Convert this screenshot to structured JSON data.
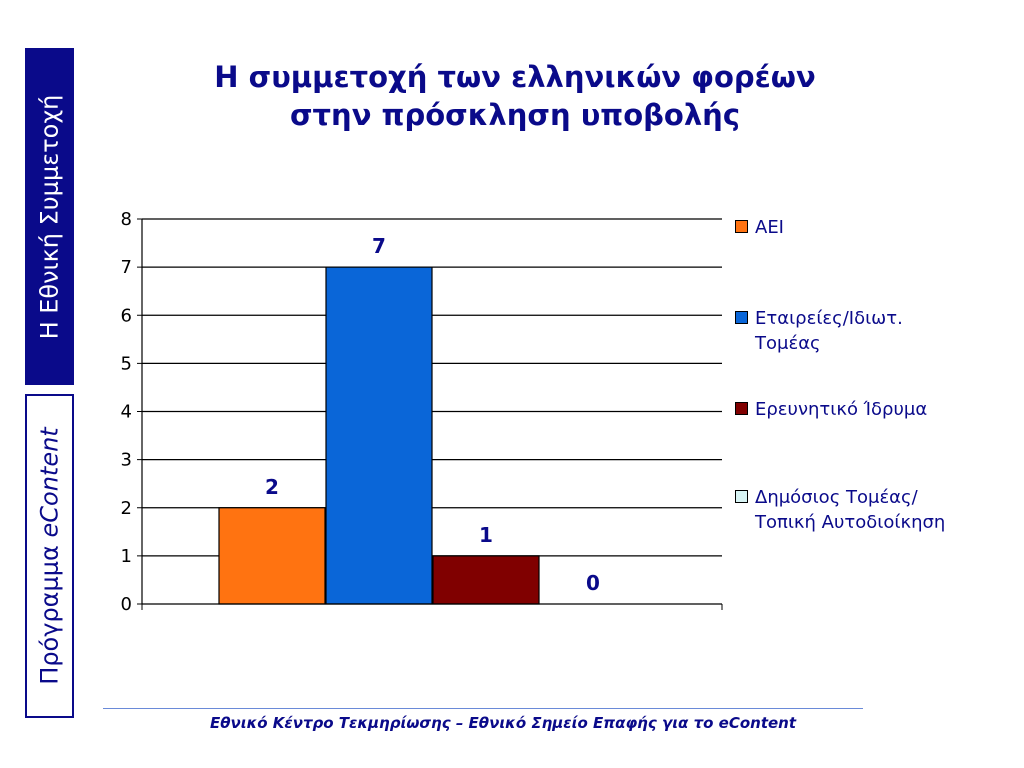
{
  "sidebar": {
    "top_label": "Η Εθνική Συμμετοχή",
    "bottom_label_prefix": "Πρόγραμμα ",
    "bottom_label_brand": "eContent"
  },
  "title": {
    "line1": "Η συμμετοχή των ελληνικών φορέων",
    "line2": "στην πρόσκληση υποβολής"
  },
  "chart_data": {
    "type": "bar",
    "categories": [
      "ΑΕΙ",
      "Εταιρείες/Ιδιωτ. Τομέας",
      "Ερευνητικό Ίδρυμα",
      "Δημόσιος Τομέας/Τοπική Αυτοδιοίκηση"
    ],
    "values": [
      2,
      7,
      1,
      0
    ],
    "data_labels": [
      "2",
      "7",
      "1",
      "0"
    ],
    "colors": [
      "#ff7311",
      "#0a66d8",
      "#800000",
      "#d8f4f4"
    ],
    "ylim": [
      0,
      8
    ],
    "yticks": [
      "0",
      "1",
      "2",
      "3",
      "4",
      "5",
      "6",
      "7",
      "8"
    ],
    "grid": true,
    "legend_position": "right",
    "label_color": "#0a0a8a"
  },
  "legend": [
    {
      "label": "ΑΕΙ",
      "color": "#ff7311"
    },
    {
      "label": "Εταιρείες/Ιδιωτ. Τομέας",
      "color": "#0a66d8"
    },
    {
      "label": "Ερευνητικό Ίδρυμα",
      "color": "#800000"
    },
    {
      "label": "Δημόσιος Τομέας/Τοπική Αυτοδιοίκηση",
      "color": "#d8f4f4"
    }
  ],
  "footer": {
    "text": "Εθνικό Κέντρο Τεκμηρίωσης – Εθνικό Σημείο Επαφής για το ",
    "brand": "eContent"
  }
}
